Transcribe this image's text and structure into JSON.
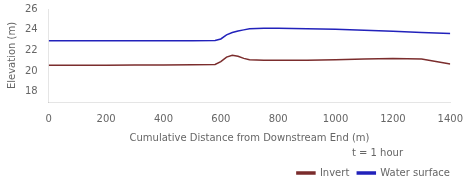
{
  "chart_data": {
    "type": "line",
    "xlabel": "Cumulative Distance from Downstream End (m)",
    "ylabel": "Elevation (m)",
    "x": [
      0,
      50,
      100,
      200,
      300,
      400,
      500,
      580,
      600,
      620,
      640,
      660,
      680,
      700,
      750,
      800,
      900,
      1000,
      1100,
      1200,
      1300,
      1400
    ],
    "series": [
      {
        "name": "Invert",
        "color": "#7B2D2D",
        "values": [
          20.55,
          20.55,
          20.55,
          20.55,
          20.57,
          20.58,
          20.6,
          20.63,
          20.9,
          21.35,
          21.52,
          21.42,
          21.22,
          21.1,
          21.05,
          21.05,
          21.05,
          21.1,
          21.15,
          21.2,
          21.15,
          20.68
        ]
      },
      {
        "name": "Water surface",
        "color": "#2222BB",
        "values": [
          22.93,
          22.93,
          22.93,
          22.93,
          22.93,
          22.93,
          22.93,
          22.95,
          23.1,
          23.5,
          23.72,
          23.88,
          23.98,
          24.08,
          24.13,
          24.13,
          24.1,
          24.05,
          23.95,
          23.85,
          23.73,
          23.63
        ]
      }
    ],
    "xlim": [
      0,
      1400
    ],
    "ylim": [
      17,
      26
    ],
    "xticks": [
      0,
      200,
      400,
      600,
      800,
      1000,
      1200,
      1400
    ],
    "yticks": [
      18,
      20,
      22,
      24,
      26
    ],
    "grid": false,
    "legend": "lower right",
    "legend_title": "t = 1 hour"
  }
}
